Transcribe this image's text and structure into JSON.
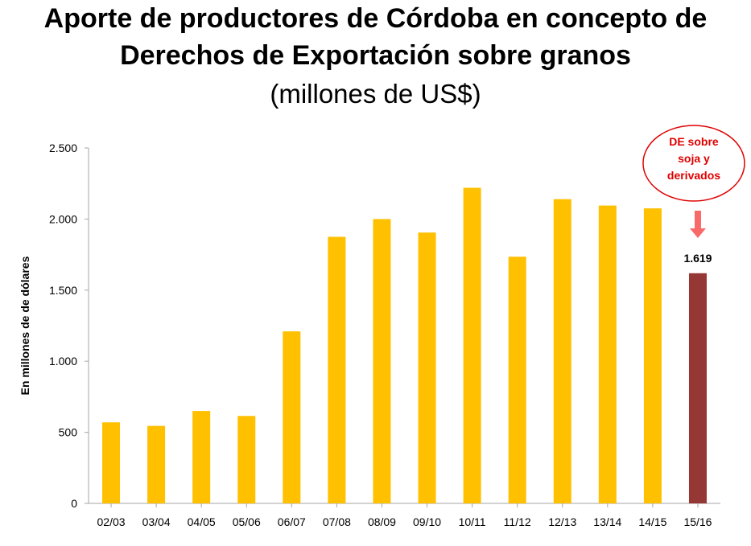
{
  "title_line1": "Aporte de productores de Córdoba en concepto de",
  "title_line2": "Derechos de Exportación sobre granos",
  "title_line3": "(millones de US$)",
  "callout_lines": [
    "DE sobre",
    "soja y",
    "derivados"
  ],
  "colors": {
    "bar": "#FFC000",
    "highlight_bar": "#953735",
    "axis": "#a6a6a6",
    "callout_border": "#e00000",
    "callout_text": "#e00000",
    "arrow": "#f86a6a"
  },
  "chart_data": {
    "type": "bar",
    "title": "Aporte de productores de Córdoba en concepto de Derechos de Exportación sobre granos (millones de US$)",
    "xlabel": "",
    "ylabel": "En millones de de dólares",
    "ylim": [
      0,
      2500
    ],
    "yticks": [
      0,
      500,
      1000,
      1500,
      2000,
      2500
    ],
    "ytick_labels": [
      "0",
      "500",
      "1.000",
      "1.500",
      "2.000",
      "2.500"
    ],
    "categories": [
      "02/03",
      "03/04",
      "04/05",
      "05/06",
      "06/07",
      "07/08",
      "08/09",
      "09/10",
      "10/11",
      "11/12",
      "12/13",
      "13/14",
      "14/15",
      "15/16"
    ],
    "values": [
      570,
      545,
      650,
      615,
      1210,
      1875,
      2000,
      1905,
      2220,
      1735,
      2140,
      2095,
      2075,
      1619
    ],
    "highlight_index": 13,
    "highlight_label": "1.619",
    "grid": false
  }
}
